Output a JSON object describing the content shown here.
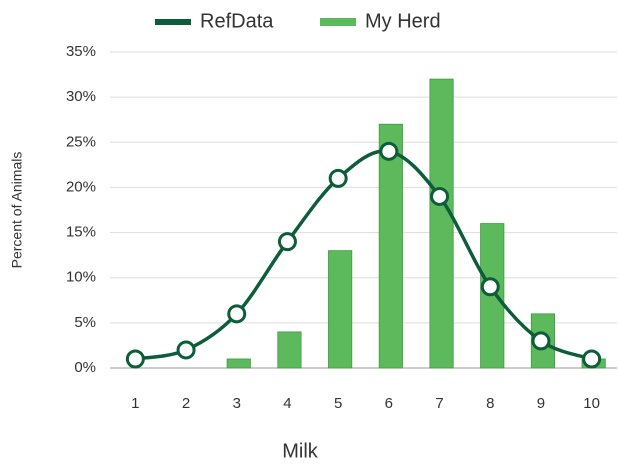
{
  "chart_data": {
    "type": "combo",
    "x_label": "Milk",
    "y_label": "Percent of Animals",
    "categories": [
      "1",
      "2",
      "3",
      "4",
      "5",
      "6",
      "7",
      "8",
      "9",
      "10"
    ],
    "series": [
      {
        "name": "RefData",
        "type": "line",
        "color": "#0d5c3a",
        "values": [
          1,
          2,
          6,
          14,
          21,
          24,
          19,
          9,
          3,
          1
        ]
      },
      {
        "name": "My Herd",
        "type": "bar",
        "color": "#5cba5c",
        "values": [
          0,
          0,
          1,
          4,
          13,
          27,
          32,
          16,
          6,
          1
        ]
      }
    ],
    "ylim": [
      0,
      35
    ],
    "yticks": [
      {
        "value": 0,
        "label": "0%"
      },
      {
        "value": 5,
        "label": "5%"
      },
      {
        "value": 10,
        "label": "10%"
      },
      {
        "value": 15,
        "label": "15%"
      },
      {
        "value": 20,
        "label": "20%"
      },
      {
        "value": 25,
        "label": "25%"
      },
      {
        "value": 30,
        "label": "30%"
      },
      {
        "value": 35,
        "label": "35%"
      }
    ],
    "grid": true,
    "legend": "top"
  }
}
